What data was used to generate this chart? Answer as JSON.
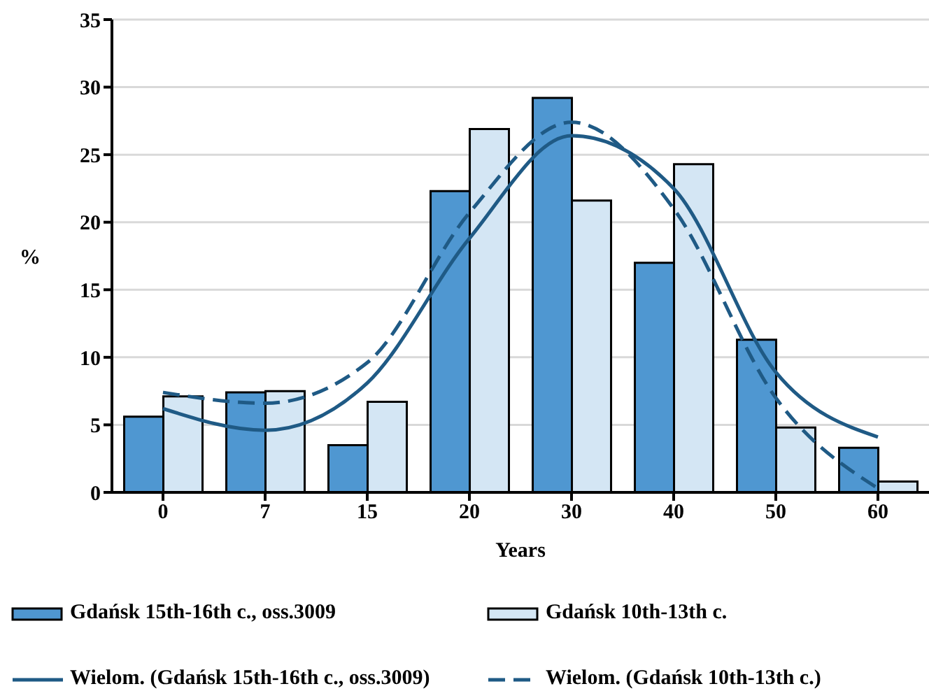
{
  "chart_data": {
    "type": "bar",
    "xlabel": "Years",
    "ylabel": "%",
    "categories": [
      "0",
      "7",
      "15",
      "20",
      "30",
      "40",
      "50",
      "60"
    ],
    "series": [
      {
        "name": "Gdańsk 15th-16th c., oss.3009",
        "color": "#4f97d1",
        "values": [
          5.6,
          7.4,
          3.5,
          22.3,
          29.2,
          17.0,
          11.3,
          3.3
        ]
      },
      {
        "name": "Gdańsk 10th-13th c.",
        "color": "#d4e6f4",
        "values": [
          7.1,
          7.5,
          6.7,
          26.9,
          21.6,
          24.3,
          4.8,
          0.8
        ]
      },
      {
        "name": "Wielom. (Gdańsk 15th-16th c., oss.3009)",
        "type": "line",
        "color": "#1f5a85",
        "line_style": "solid",
        "values": [
          6.2,
          4.6,
          8.1,
          18.8,
          26.4,
          22.5,
          8.9,
          4.1
        ]
      },
      {
        "name": "Wielom. (Gdańsk 10th-13th c.)",
        "type": "line",
        "color": "#1f5a85",
        "line_style": "dashed",
        "values": [
          7.4,
          6.6,
          9.6,
          20.7,
          27.4,
          21.0,
          7.0,
          0.3
        ]
      }
    ],
    "ylim": [
      0,
      35
    ],
    "yticks": [
      0,
      5,
      10,
      15,
      20,
      25,
      30,
      35
    ],
    "grid": "y",
    "legend": "bottom",
    "marker": "none"
  }
}
